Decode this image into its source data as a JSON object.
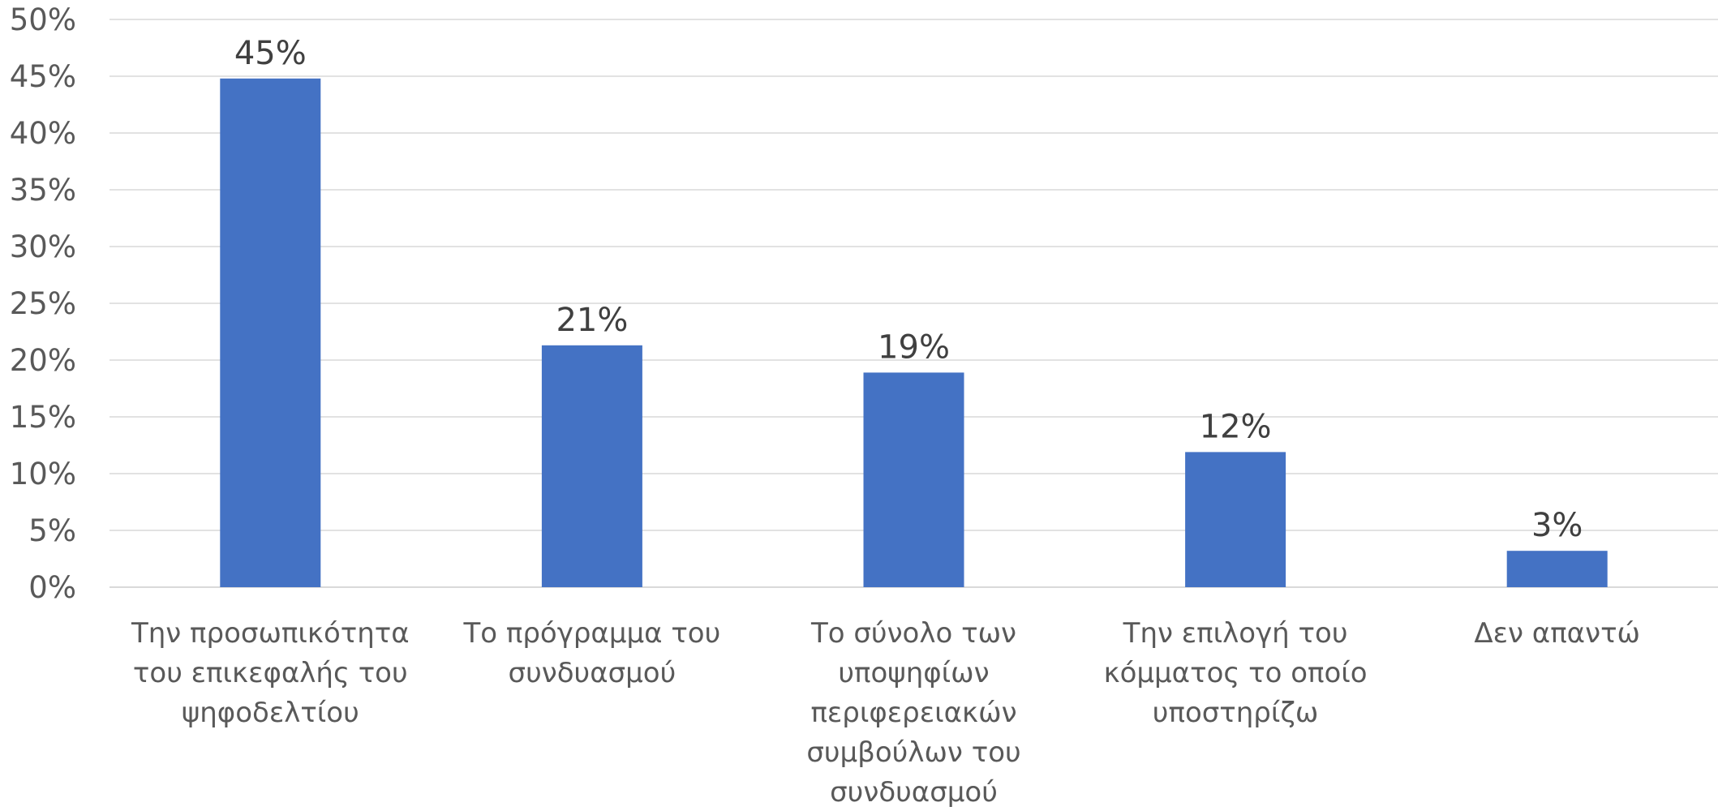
{
  "chart_data": {
    "type": "bar",
    "title": "",
    "xlabel": "",
    "ylabel": "",
    "ylim": [
      0,
      50
    ],
    "ytick_step": 5,
    "ytick_format": "percent",
    "grid": true,
    "legend": "none",
    "bar_color": "#4472C4",
    "categories": [
      [
        "Την προσωπικότητα",
        "του επικεφαλής του",
        "ψηφοδελτίου"
      ],
      [
        "Το πρόγραμμα του",
        "συνδυασμού"
      ],
      [
        "Το σύνολο των",
        "υποψηφίων",
        "περιφερειακών",
        "συμβούλων του",
        "συνδυασμού"
      ],
      [
        "Την επιλογή του",
        "κόμματος το οποίο",
        "υποστηρίζω"
      ],
      [
        "Δεν απαντώ"
      ]
    ],
    "values": [
      44.8,
      21.3,
      18.9,
      11.9,
      3.2
    ],
    "data_labels": [
      "45%",
      "21%",
      "19%",
      "12%",
      "3%"
    ]
  }
}
